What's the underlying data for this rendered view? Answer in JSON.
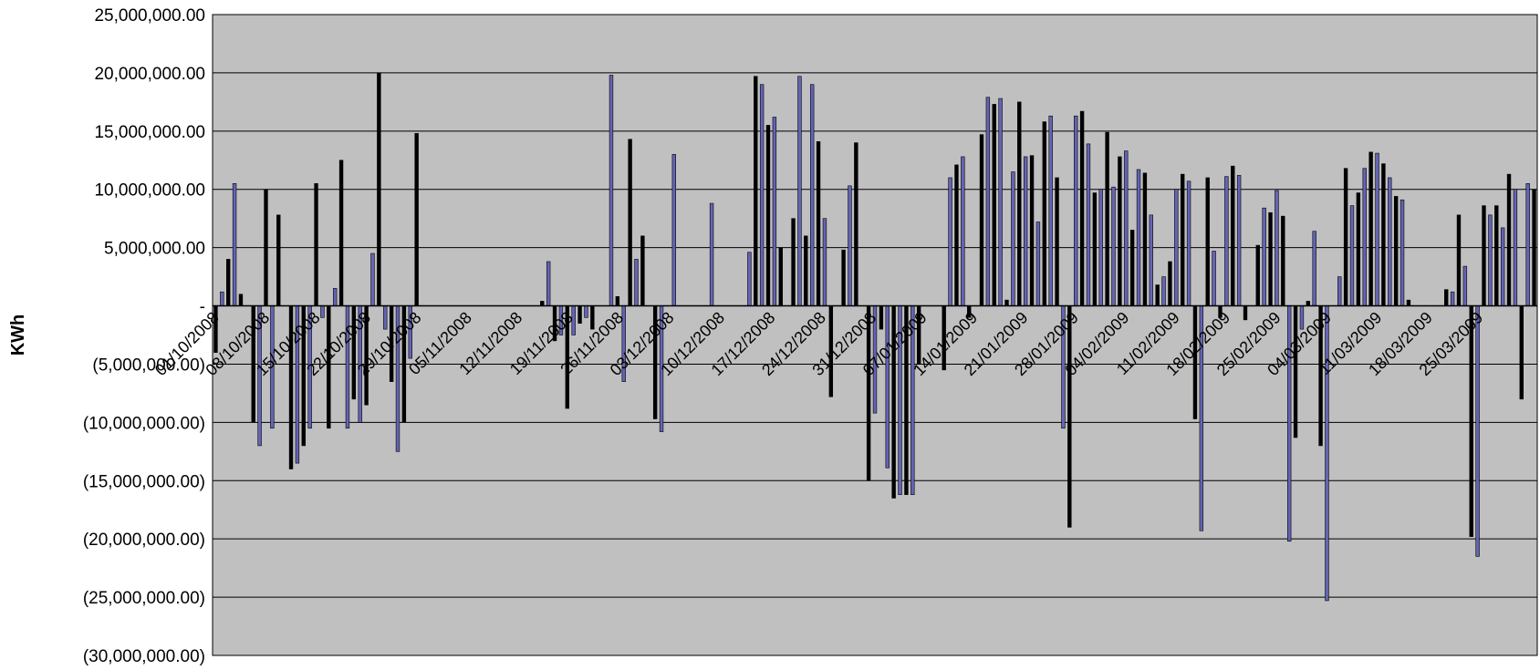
{
  "chart_data": {
    "type": "bar",
    "title": "",
    "xlabel": "",
    "ylabel": "KWh",
    "ylim": [
      -30000000,
      25000000
    ],
    "y_ticks": [
      {
        "value": 25000000,
        "label": "25,000,000.00"
      },
      {
        "value": 20000000,
        "label": "20,000,000.00"
      },
      {
        "value": 15000000,
        "label": "15,000,000.00"
      },
      {
        "value": 10000000,
        "label": "10,000,000.00"
      },
      {
        "value": 5000000,
        "label": "5,000,000.00"
      },
      {
        "value": 0,
        "label": "-"
      },
      {
        "value": -5000000,
        "label": "(5,000,000.00)"
      },
      {
        "value": -10000000,
        "label": "(10,000,000.00)"
      },
      {
        "value": -15000000,
        "label": "(15,000,000.00)"
      },
      {
        "value": -20000000,
        "label": "(20,000,000.00)"
      },
      {
        "value": -25000000,
        "label": "(25,000,000.00)"
      },
      {
        "value": -30000000,
        "label": "(30,000,000.00)"
      }
    ],
    "x_tick_labels": [
      "01/10/2008",
      "08/10/2008",
      "15/10/2008",
      "22/10/2008",
      "29/10/2008",
      "05/11/2008",
      "12/11/2008",
      "19/11/2008",
      "26/11/2008",
      "03/12/2008",
      "10/12/2008",
      "17/12/2008",
      "24/12/2008",
      "31/12/2008",
      "07/01/2009",
      "14/01/2009",
      "21/01/2009",
      "28/01/2009",
      "04/02/2009",
      "11/02/2009",
      "18/02/2009",
      "25/02/2009",
      "04/03/2009",
      "11/03/2009",
      "18/03/2009",
      "25/03/2009"
    ],
    "grid": true,
    "legend": "none",
    "series_colors": [
      "#000000",
      "#6464b4"
    ],
    "plot_background": "#c0c0c0",
    "values": [
      -4000000,
      1200000,
      4000000,
      10500000,
      1000000,
      0,
      -10000000,
      -12000000,
      10000000,
      -10500000,
      7800000,
      0,
      -14000000,
      -13500000,
      -12000000,
      -10500000,
      10500000,
      -1000000,
      -10500000,
      1500000,
      12500000,
      -10500000,
      -8000000,
      -10000000,
      -8500000,
      4500000,
      20000000,
      -2000000,
      -6500000,
      -12500000,
      -10000000,
      -4500000,
      14800000,
      0,
      0,
      0,
      0,
      0,
      0,
      0,
      0,
      0,
      0,
      0,
      0,
      0,
      0,
      0,
      0,
      0,
      0,
      0,
      400000,
      3800000,
      -3000000,
      -2500000,
      -8800000,
      -2500000,
      -1500000,
      -1000000,
      -2000000,
      0,
      0,
      19800000,
      800000,
      -6500000,
      14300000,
      4000000,
      6000000,
      0,
      -9700000,
      -10800000,
      0,
      13000000,
      0,
      0,
      0,
      0,
      0,
      8800000,
      0,
      0,
      0,
      0,
      0,
      4600000,
      19700000,
      19000000,
      15500000,
      16200000,
      5000000,
      0,
      7500000,
      19700000,
      6000000,
      19000000,
      14100000,
      7500000,
      -7800000,
      0,
      4800000,
      10300000,
      14000000,
      0,
      -15000000,
      -9200000,
      -2000000,
      -13900000,
      -16500000,
      -16200000,
      -16200000,
      -16200000,
      -5000000,
      0,
      0,
      0,
      -5500000,
      11000000,
      12100000,
      12800000,
      -1000000,
      0,
      14700000,
      17900000,
      17300000,
      17800000,
      500000,
      11500000,
      17500000,
      12800000,
      12900000,
      7200000,
      15800000,
      16300000,
      11000000,
      -10500000,
      -19000000,
      16300000,
      16700000,
      13900000,
      9700000,
      10000000,
      14900000,
      10200000,
      12800000,
      13300000,
      6500000,
      11700000,
      11400000,
      7800000,
      1800000,
      2500000,
      3800000,
      10000000,
      11300000,
      10700000,
      -9700000,
      -19300000,
      11000000,
      4700000,
      -1000000,
      11100000,
      12000000,
      11200000,
      -1200000,
      0,
      5200000,
      8400000,
      8000000,
      9900000,
      7700000,
      -20200000,
      -11300000,
      -2000000,
      400000,
      6400000,
      -12000000,
      -25300000,
      0,
      2500000,
      11800000,
      8600000,
      9700000,
      11800000,
      13200000,
      13100000,
      12200000,
      11000000,
      9400000,
      9100000,
      500000,
      0,
      0,
      0,
      0,
      0,
      1400000,
      1200000,
      7800000,
      3400000,
      -19800000,
      -21500000,
      8600000,
      7800000,
      8600000,
      6700000,
      11300000,
      10000000,
      -8000000,
      10500000,
      10000000
    ]
  }
}
